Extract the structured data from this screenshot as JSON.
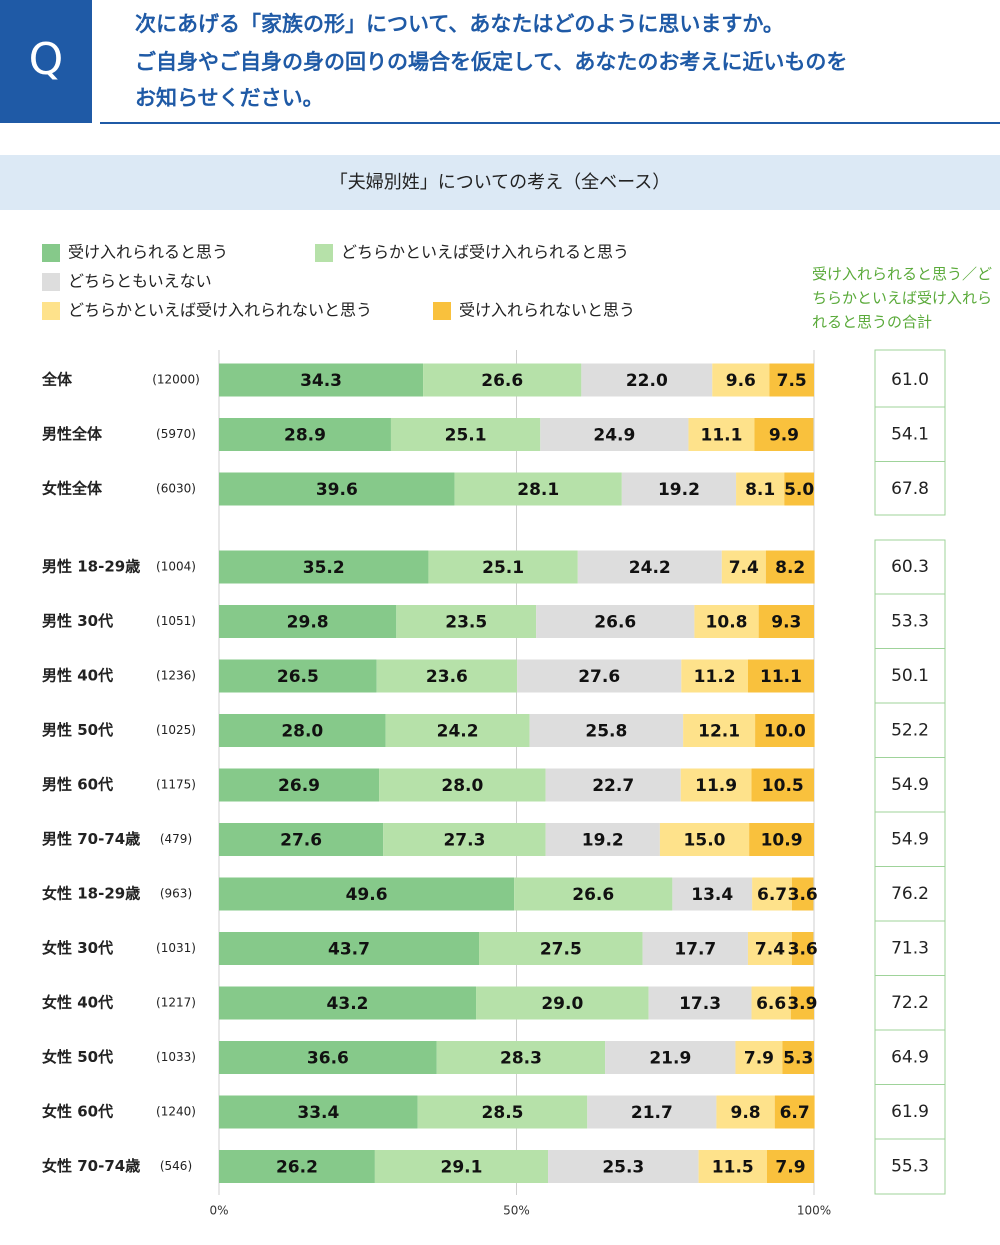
{
  "header": {
    "badge": "Q",
    "question": [
      "次にあげる「家族の形」について、あなたはどのように思いますか。",
      "ご自身やご自身の身の回りの場合を仮定して、あなたのお考えに近いものを",
      "お知らせください。"
    ]
  },
  "chart_data": {
    "type": "stacked-bar-horizontal",
    "title": "「夫婦別姓」についての考え（全ベース）",
    "categories": [
      "全体",
      "男性全体",
      "女性全体",
      "男性 18-29歳",
      "男性 30代",
      "男性 40代",
      "男性 50代",
      "男性 60代",
      "男性 70-74歳",
      "女性 18-29歳",
      "女性 30代",
      "女性 40代",
      "女性 50代",
      "女性 60代",
      "女性 70-74歳"
    ],
    "sample_sizes": [
      "(12000)",
      "(5970)",
      "(6030)",
      "(1004)",
      "(1051)",
      "(1236)",
      "(1025)",
      "(1175)",
      "(479)",
      "(963)",
      "(1031)",
      "(1217)",
      "(1033)",
      "(1240)",
      "(546)"
    ],
    "series": [
      {
        "name": "受け入れられると思う",
        "color": "#86c98a",
        "values": [
          34.3,
          28.9,
          39.6,
          35.2,
          29.8,
          26.5,
          28.0,
          26.9,
          27.6,
          49.6,
          43.7,
          43.2,
          36.6,
          33.4,
          26.2
        ],
        "value_labels": [
          "34.3",
          "28.9",
          "39.6",
          "35.2",
          "29.8",
          "26.5",
          "28.0",
          "26.9",
          "27.6",
          "49.6",
          "43.7",
          "43.2",
          "36.6",
          "33.4",
          "26.2"
        ]
      },
      {
        "name": "どちらかといえば受け入れられると思う",
        "color": "#b6e1a9",
        "values": [
          26.6,
          25.1,
          28.1,
          25.1,
          23.5,
          23.6,
          24.2,
          28.0,
          27.3,
          26.6,
          27.5,
          29.0,
          28.3,
          28.5,
          29.1
        ],
        "value_labels": [
          "26.6",
          "25.1",
          "28.1",
          "25.1",
          "23.5",
          "23.6",
          "24.2",
          "28.0",
          "27.3",
          "26.6",
          "27.5",
          "29.0",
          "28.3",
          "28.5",
          "29.1"
        ]
      },
      {
        "name": "どちらともいえない",
        "color": "#dddddd",
        "values": [
          22.0,
          24.9,
          19.2,
          24.2,
          26.6,
          27.6,
          25.8,
          22.7,
          19.2,
          13.4,
          17.7,
          17.3,
          21.9,
          21.7,
          25.3
        ],
        "value_labels": [
          "22.0",
          "24.9",
          "19.2",
          "24.2",
          "26.6",
          "27.6",
          "25.8",
          "22.7",
          "19.2",
          "13.4",
          "17.7",
          "17.3",
          "21.9",
          "21.7",
          "25.3"
        ]
      },
      {
        "name": "どちらかといえば受け入れられないと思う",
        "color": "#fee28b",
        "values": [
          9.6,
          11.1,
          8.1,
          7.4,
          10.8,
          11.2,
          12.1,
          11.9,
          15.0,
          6.7,
          7.4,
          6.6,
          7.9,
          9.8,
          11.5
        ],
        "value_labels": [
          "9.6",
          "11.1",
          "8.1",
          "7.4",
          "10.8",
          "11.2",
          "12.1",
          "11.9",
          "15.0",
          "6.7",
          "7.4",
          "6.6",
          "7.9",
          "9.8",
          "11.5"
        ]
      },
      {
        "name": "受け入れられないと思う",
        "color": "#f9c13d",
        "values": [
          7.5,
          9.9,
          5.0,
          8.2,
          9.3,
          11.1,
          10.0,
          10.5,
          10.9,
          3.6,
          3.6,
          3.9,
          5.3,
          6.7,
          7.9
        ],
        "value_labels": [
          "7.5",
          "9.9",
          "5.0",
          "8.2",
          "9.3",
          "11.1",
          "10.0",
          "10.5",
          "10.9",
          "3.6",
          "3.6",
          "3.9",
          "5.3",
          "6.7",
          "7.9"
        ]
      }
    ],
    "xlim": [
      0,
      100
    ],
    "xticks": [
      {
        "value": 0,
        "label": "0%"
      },
      {
        "value": 50,
        "label": "50%"
      },
      {
        "value": 100,
        "label": "100%"
      }
    ],
    "grid": true,
    "totals_title": "受け入れられると思う／どちらかといえば受け入れられると思うの合計",
    "totals": {
      "values": [
        61.0,
        54.1,
        67.8,
        60.3,
        53.3,
        50.1,
        52.2,
        54.9,
        54.9,
        76.2,
        71.3,
        72.2,
        64.9,
        61.9,
        55.3
      ],
      "value_labels": [
        "61.0",
        "54.1",
        "67.8",
        "60.3",
        "53.3",
        "50.1",
        "52.2",
        "54.9",
        "54.9",
        "76.2",
        "71.3",
        "72.2",
        "64.9",
        "61.9",
        "55.3"
      ]
    }
  }
}
